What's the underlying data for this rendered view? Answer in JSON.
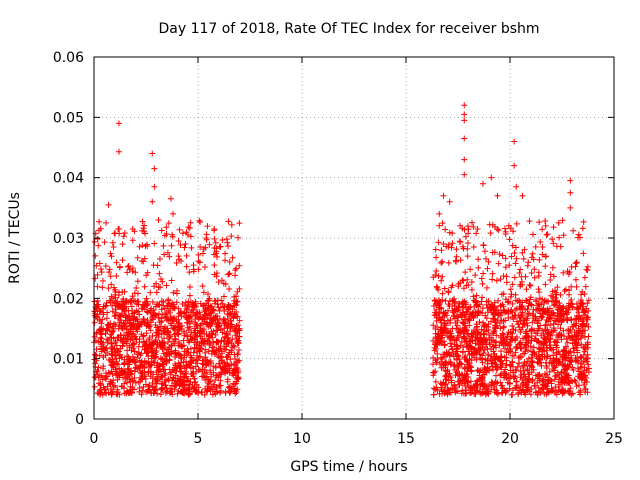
{
  "chart_data": {
    "type": "scatter",
    "title": "Day 117 of 2018, Rate Of TEC Index for receiver bshm",
    "xlabel": "GPS time / hours",
    "ylabel": "ROTI / TECUs",
    "xlim": [
      0,
      25
    ],
    "ylim": [
      0,
      0.06
    ],
    "xticks": [
      0,
      5,
      10,
      15,
      20,
      25
    ],
    "xtick_labels": [
      "0",
      "5",
      "10",
      "15",
      "20",
      "25"
    ],
    "yticks": [
      0,
      0.01,
      0.02,
      0.03,
      0.04,
      0.05,
      0.06
    ],
    "ytick_labels": [
      "0",
      "0.01",
      "0.02",
      "0.03",
      "0.04",
      "0.05",
      "0.06"
    ],
    "grid": true,
    "marker": "+",
    "color": "#ff0000",
    "series": [
      {
        "name": "ROTI",
        "segments": [
          {
            "x_start": 0.0,
            "x_end": 7.0,
            "y_typical_min": 0.004,
            "y_typical_max": 0.025
          },
          {
            "x_start": 16.3,
            "x_end": 23.8,
            "y_typical_min": 0.004,
            "y_typical_max": 0.025
          }
        ],
        "notable_points": [
          {
            "x": 1.2,
            "y": 0.049
          },
          {
            "x": 1.2,
            "y": 0.0443
          },
          {
            "x": 0.7,
            "y": 0.0355
          },
          {
            "x": 2.8,
            "y": 0.044
          },
          {
            "x": 2.9,
            "y": 0.0415
          },
          {
            "x": 2.9,
            "y": 0.0385
          },
          {
            "x": 2.8,
            "y": 0.036
          },
          {
            "x": 3.7,
            "y": 0.0365
          },
          {
            "x": 3.8,
            "y": 0.034
          },
          {
            "x": 4.4,
            "y": 0.029
          },
          {
            "x": 5.4,
            "y": 0.03
          },
          {
            "x": 16.6,
            "y": 0.034
          },
          {
            "x": 16.8,
            "y": 0.037
          },
          {
            "x": 17.1,
            "y": 0.036
          },
          {
            "x": 17.8,
            "y": 0.052
          },
          {
            "x": 17.8,
            "y": 0.0505
          },
          {
            "x": 17.8,
            "y": 0.0495
          },
          {
            "x": 17.8,
            "y": 0.0465
          },
          {
            "x": 17.8,
            "y": 0.043
          },
          {
            "x": 17.8,
            "y": 0.0405
          },
          {
            "x": 18.7,
            "y": 0.039
          },
          {
            "x": 19.1,
            "y": 0.04
          },
          {
            "x": 19.4,
            "y": 0.037
          },
          {
            "x": 20.2,
            "y": 0.046
          },
          {
            "x": 20.2,
            "y": 0.042
          },
          {
            "x": 20.3,
            "y": 0.0385
          },
          {
            "x": 20.6,
            "y": 0.037
          },
          {
            "x": 22.9,
            "y": 0.0395
          },
          {
            "x": 22.9,
            "y": 0.0375
          },
          {
            "x": 22.9,
            "y": 0.035
          }
        ]
      }
    ]
  }
}
